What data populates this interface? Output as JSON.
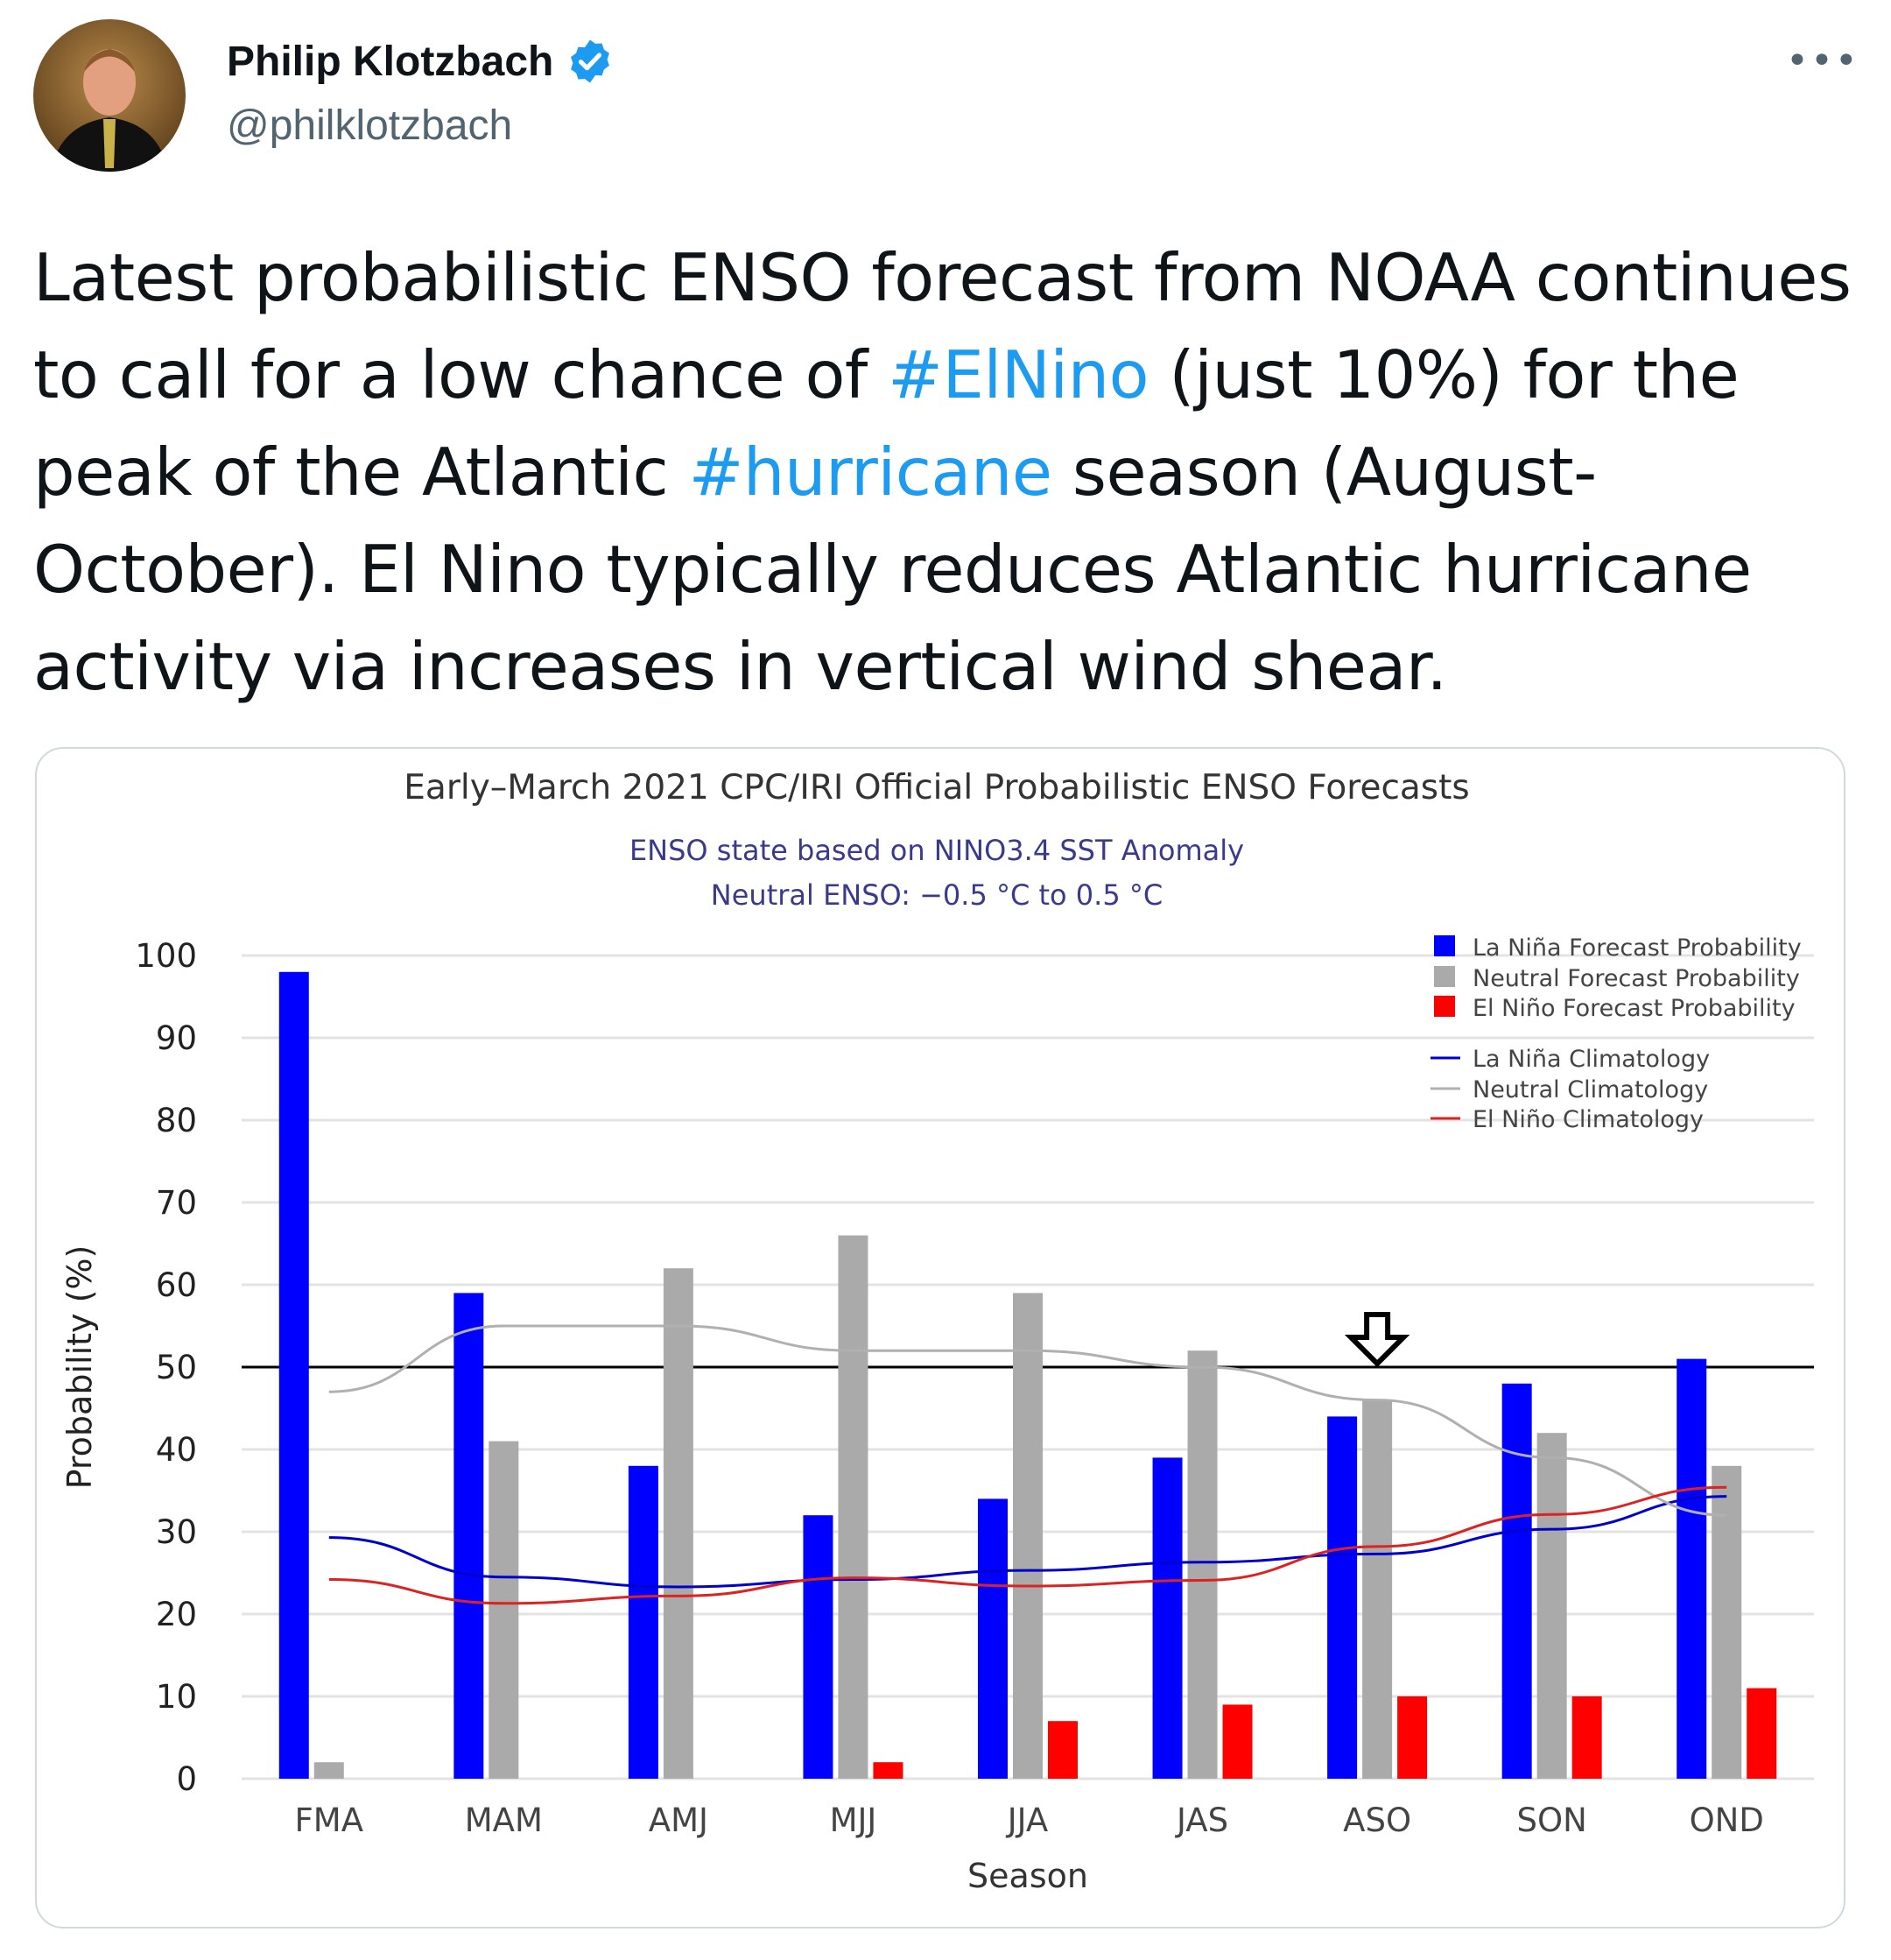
{
  "tweet": {
    "author_name": "Philip Klotzbach",
    "handle": "@philklotzbach",
    "verified_icon": "verified-badge-icon",
    "more_icon": "more-dots-icon",
    "more_label": "•••",
    "text_parts": [
      "Latest probabilistic ENSO forecast from NOAA continues to call for a low chance of ",
      "#ElNino",
      " (just 10%) for the peak of the Atlantic ",
      "#hurricane",
      " season (August-October). El Nino typically reduces Atlantic hurricane activity via increases in vertical wind shear."
    ],
    "link_color": "#1d9bf0"
  },
  "chart_data": {
    "type": "bar",
    "title": "Early–March 2021 CPC/IRI Official Probabilistic ENSO Forecasts",
    "subtitle_1": "ENSO state based on NINO3.4 SST Anomaly",
    "subtitle_2": "Neutral ENSO: −0.5 °C to 0.5 °C",
    "xlabel": "Season",
    "ylabel": "Probability (%)",
    "ylim": [
      0,
      100
    ],
    "yticks": [
      "0",
      "10",
      "20",
      "30",
      "40",
      "50",
      "60",
      "70",
      "80",
      "90",
      "100"
    ],
    "reference_line": 50,
    "highlight_category": "ASO",
    "categories": [
      "FMA",
      "MAM",
      "AMJ",
      "MJJ",
      "JJA",
      "JAS",
      "ASO",
      "SON",
      "OND"
    ],
    "series": [
      {
        "name": "La Niña Forecast Probability",
        "kind": "bar",
        "color": "#0000ff",
        "values": [
          98,
          59,
          38,
          32,
          34,
          39,
          44,
          48,
          51
        ]
      },
      {
        "name": "Neutral Forecast Probability",
        "kind": "bar",
        "color": "#aaaaaa",
        "values": [
          2,
          41,
          62,
          66,
          59,
          52,
          46,
          42,
          38
        ]
      },
      {
        "name": "El Niño Forecast Probability",
        "kind": "bar",
        "color": "#ff0000",
        "values": [
          0,
          0,
          0,
          2,
          7,
          9,
          10,
          10,
          11
        ]
      },
      {
        "name": "La Niña Climatology",
        "kind": "line",
        "color": "#0000cc",
        "values": [
          29.3,
          24.5,
          23.3,
          24.2,
          25.3,
          26.3,
          27.3,
          30.3,
          34.3
        ]
      },
      {
        "name": "Neutral Climatology",
        "kind": "line",
        "color": "#b0b0b0",
        "values": [
          47,
          55,
          55,
          52,
          52,
          50,
          46,
          39,
          32
        ]
      },
      {
        "name": "El Niño Climatology",
        "kind": "line",
        "color": "#dd2222",
        "values": [
          24.2,
          21.3,
          22.2,
          24.4,
          23.4,
          24.1,
          28.2,
          32.1,
          35.4
        ]
      }
    ],
    "legend_position": "top-right",
    "grid": true
  }
}
